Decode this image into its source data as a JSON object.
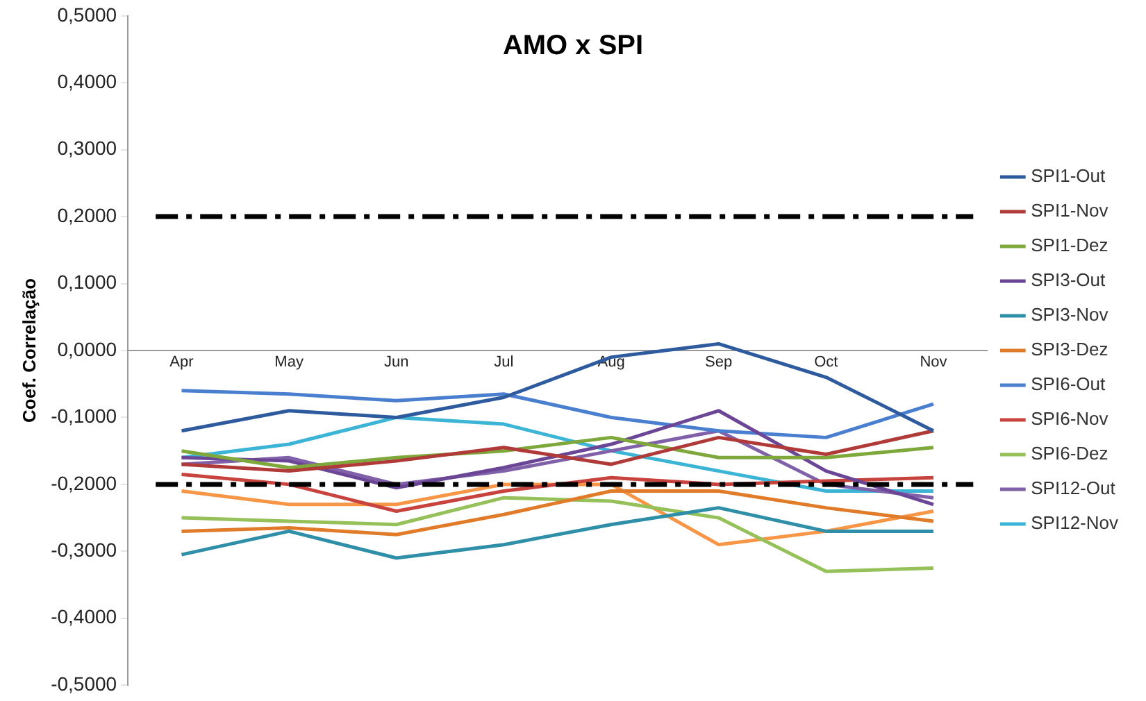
{
  "chart_data": {
    "type": "line",
    "title": "AMO x SPI",
    "ylabel": "Coef. Correlação",
    "categories": [
      "Apr",
      "May",
      "Jun",
      "Jul",
      "Aug",
      "Sep",
      "Oct",
      "Nov"
    ],
    "series": [
      {
        "name": "SPI1-Out",
        "color": "#2e5b9e",
        "values": [
          -0.12,
          -0.09,
          -0.1,
          -0.07,
          -0.01,
          0.01,
          -0.04,
          -0.12
        ]
      },
      {
        "name": "SPI1-Nov",
        "color": "#b03a38",
        "values": [
          -0.17,
          -0.18,
          -0.165,
          -0.145,
          -0.17,
          -0.13,
          -0.155,
          -0.12
        ]
      },
      {
        "name": "SPI1-Dez",
        "color": "#7fa83c",
        "values": [
          -0.15,
          -0.175,
          -0.16,
          -0.15,
          -0.13,
          -0.16,
          -0.16,
          -0.145
        ]
      },
      {
        "name": "SPI3-Out",
        "color": "#6b4696",
        "values": [
          -0.16,
          -0.165,
          -0.205,
          -0.175,
          -0.14,
          -0.09,
          -0.18,
          -0.23
        ]
      },
      {
        "name": "SPI3-Nov",
        "color": "#2f8ea8",
        "values": [
          -0.305,
          -0.27,
          -0.31,
          -0.29,
          -0.26,
          -0.235,
          -0.27,
          -0.27
        ]
      },
      {
        "name": "SPI3-Dez",
        "color": "#e07b2a",
        "values": [
          -0.27,
          -0.265,
          -0.275,
          -0.245,
          -0.21,
          -0.21,
          -0.235,
          -0.255
        ]
      },
      {
        "name": "SPI6-Out",
        "color": "#4a7fd0",
        "values": [
          -0.06,
          -0.065,
          -0.075,
          -0.065,
          -0.1,
          -0.12,
          -0.13,
          -0.08
        ]
      },
      {
        "name": "SPI6-Nov",
        "color": "#c8423e",
        "values": [
          -0.185,
          -0.2,
          -0.24,
          -0.21,
          -0.19,
          -0.2,
          -0.195,
          -0.19
        ]
      },
      {
        "name": "SPI6-Dez",
        "color": "#96c05a",
        "values": [
          -0.25,
          -0.255,
          -0.26,
          -0.22,
          -0.225,
          -0.25,
          -0.33,
          -0.325
        ]
      },
      {
        "name": "SPI12-Out",
        "color": "#8060a8",
        "values": [
          -0.17,
          -0.16,
          -0.2,
          -0.18,
          -0.15,
          -0.12,
          -0.2,
          -0.22
        ]
      },
      {
        "name": "SPI12-Nov",
        "color": "#3cb4d6",
        "values": [
          -0.16,
          -0.14,
          -0.1,
          -0.11,
          -0.15,
          -0.18,
          -0.21,
          -0.21
        ]
      },
      {
        "color": "#f79646",
        "values": [
          -0.21,
          -0.23,
          -0.23,
          -0.2,
          -0.2,
          -0.29,
          -0.27,
          -0.24
        ]
      }
    ],
    "ylim": [
      -0.5,
      0.5
    ],
    "yticks": [
      {
        "value": -0.5,
        "label": "-0,5000"
      },
      {
        "value": -0.4,
        "label": "-0,4000"
      },
      {
        "value": -0.3,
        "label": "-0,3000"
      },
      {
        "value": -0.2,
        "label": "-0,2000"
      },
      {
        "value": -0.1,
        "label": "-0,1000"
      },
      {
        "value": 0,
        "label": "0,0000"
      },
      {
        "value": 0.1,
        "label": "0,1000"
      },
      {
        "value": 0.2,
        "label": "0,2000"
      },
      {
        "value": 0.3,
        "label": "0,3000"
      },
      {
        "value": 0.4,
        "label": "0,4000"
      },
      {
        "value": 0.5,
        "label": "0,5000"
      }
    ],
    "ref_lines": [
      {
        "axis": "y",
        "value": 0.2,
        "color": "#000000",
        "line_style": "dashed"
      },
      {
        "axis": "y",
        "value": -0.2,
        "color": "#000000",
        "line_style": "dashed"
      }
    ],
    "grid": false,
    "legend": "right",
    "marker": "none",
    "line_style": "solid"
  }
}
